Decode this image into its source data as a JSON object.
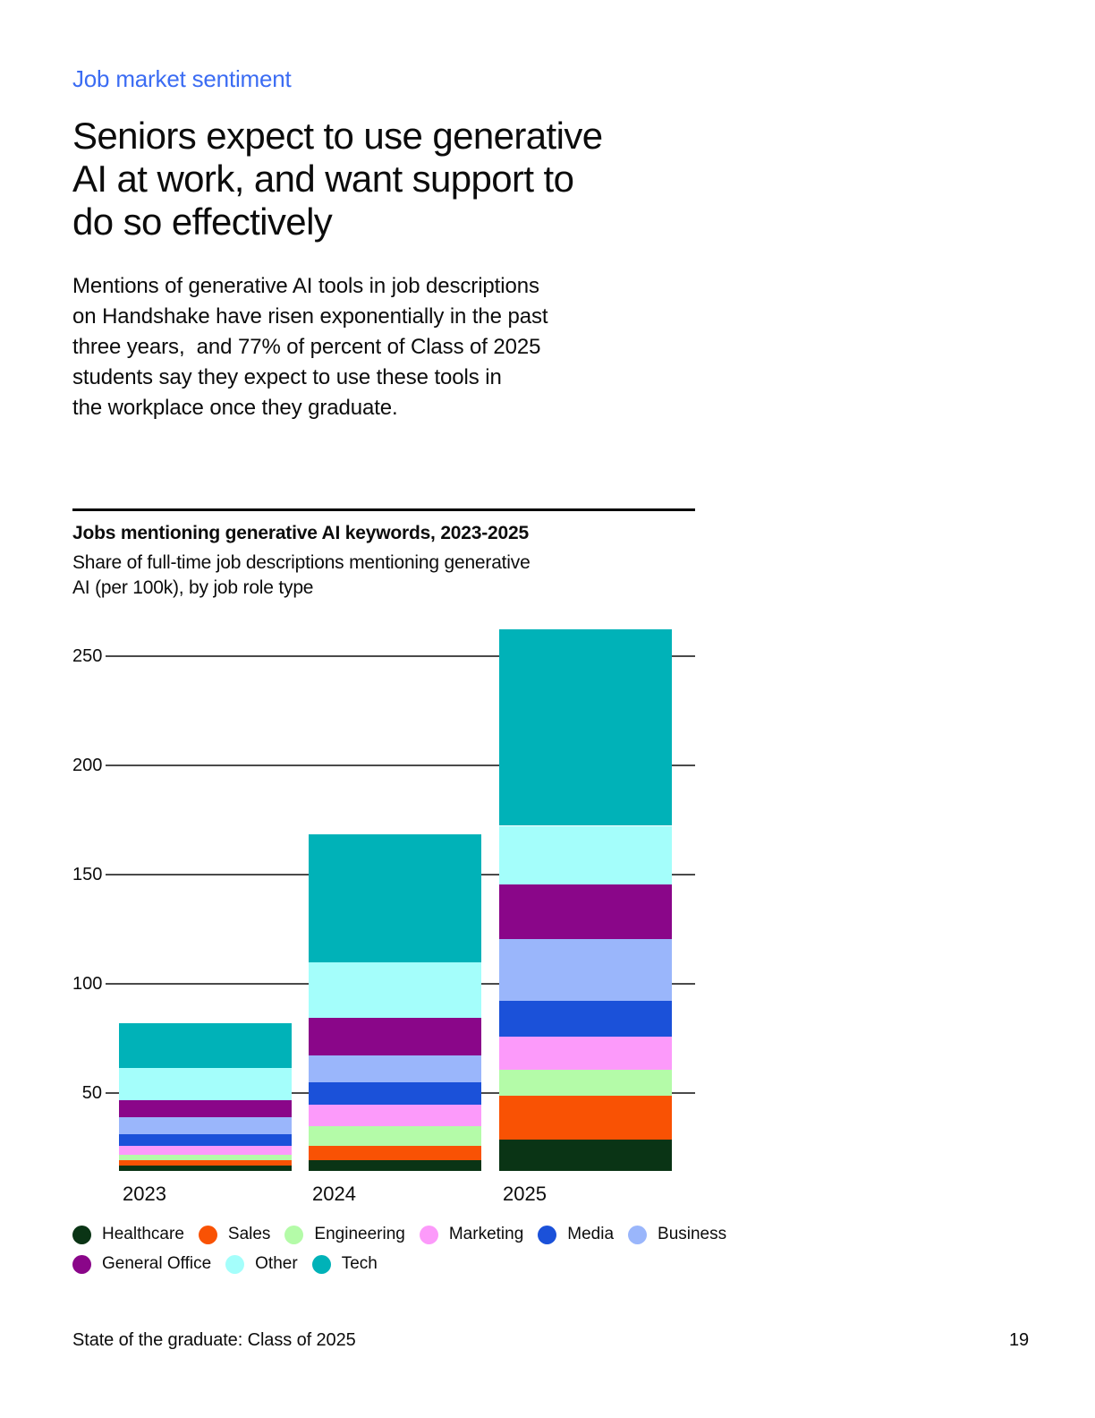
{
  "header": {
    "eyebrow": "Job market sentiment",
    "title": "Seniors expect to use generative\nAI at work, and want support to\ndo so effectively",
    "body": "Mentions of generative AI tools in job descriptions\non Handshake have risen exponentially in the past\nthree years,  and 77% of percent of Class of 2025\nstudents say they expect to use these tools in\nthe workplace once they graduate."
  },
  "chart": {
    "title": "Jobs mentioning generative AI keywords, 2023-2025",
    "subtitle": "Share of full-time job descriptions mentioning generative\nAI (per 100k), by job role type"
  },
  "chart_data": {
    "type": "bar",
    "stacked": true,
    "title": "Jobs mentioning generative AI keywords, 2023-2025",
    "subtitle": "Share of full-time job descriptions mentioning generative AI (per 100k), by job role type",
    "categories": [
      "2023",
      "2024",
      "2025"
    ],
    "series": [
      {
        "name": "Healthcare",
        "color": "#0a3415",
        "values": [
          2.5,
          5,
          14.5
        ]
      },
      {
        "name": "Sales",
        "color": "#f95204",
        "values": [
          2.5,
          6.5,
          20
        ]
      },
      {
        "name": "Engineering",
        "color": "#b4fba8",
        "values": [
          2.5,
          9,
          12
        ]
      },
      {
        "name": "Marketing",
        "color": "#fc9afa",
        "values": [
          4,
          10,
          15
        ]
      },
      {
        "name": "Media",
        "color": "#1b51d9",
        "values": [
          5.5,
          10,
          16.5
        ]
      },
      {
        "name": "Business",
        "color": "#9ab6fb",
        "values": [
          7.5,
          12.5,
          28
        ]
      },
      {
        "name": "General Office",
        "color": "#8a0689",
        "values": [
          8,
          17,
          25
        ]
      },
      {
        "name": "Other",
        "color": "#a4fefb",
        "values": [
          14.5,
          25.5,
          27
        ]
      },
      {
        "name": "Tech",
        "color": "#00b2b8",
        "values": [
          20.5,
          58.5,
          90
        ]
      }
    ],
    "totals_visible_top": [
      82,
      168.5,
      262.5
    ],
    "y_ticks": [
      50,
      100,
      150,
      200,
      250
    ],
    "ylim": [
      14.5,
      265
    ],
    "grid": true,
    "legend_position": "bottom",
    "legend_rows": [
      [
        "Healthcare",
        "Sales",
        "Engineering",
        "Marketing",
        "Media",
        "Business"
      ],
      [
        "General Office",
        "Other",
        "Tech"
      ]
    ]
  },
  "footer": {
    "left": "State of the graduate: Class of 2025",
    "page_number": "19"
  }
}
